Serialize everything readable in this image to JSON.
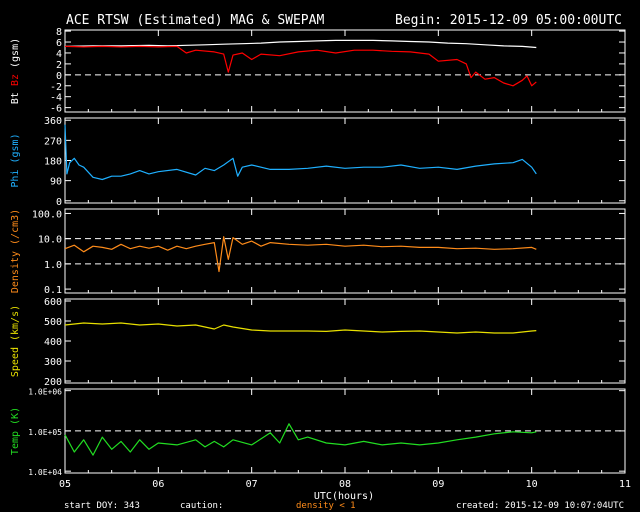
{
  "header": {
    "title": "ACE RTSW (Estimated) MAG & SWEPAM",
    "begin": "Begin: 2015-12-09 05:00:00UTC"
  },
  "footer": {
    "start_doy": "start DOY: 343",
    "caution": "caution:",
    "density_note": "density < 1",
    "created": "created: 2015-12-09 10:07:04UTC"
  },
  "colors": {
    "bt": "#ffffff",
    "bz": "#ff0000",
    "phi": "#1fb0ff",
    "density": "#ff8c1a",
    "speed": "#e8e000",
    "temp": "#22dd22",
    "background": "#000000",
    "axes": "#ffffff"
  },
  "chart_data": [
    {
      "id": "mag",
      "type": "line",
      "ylabel_parts": [
        "Bt",
        "Bz",
        "(gsm)"
      ],
      "xlim": [
        5,
        11
      ],
      "ylim": [
        -6.8,
        8.2
      ],
      "yticks": [
        8,
        6,
        4,
        2,
        0,
        -2,
        -4,
        -6
      ],
      "dashed_refs": [
        0
      ],
      "series": [
        {
          "name": "Bt",
          "color": "#ffffff",
          "x": [
            5.0,
            5.3,
            5.6,
            5.9,
            6.1,
            6.3,
            6.5,
            6.7,
            6.9,
            7.1,
            7.3,
            7.5,
            7.7,
            7.9,
            8.1,
            8.3,
            8.5,
            8.7,
            8.9,
            9.1,
            9.3,
            9.5,
            9.7,
            9.9,
            10.05
          ],
          "y": [
            5.2,
            5.3,
            5.3,
            5.4,
            5.3,
            5.4,
            5.5,
            5.6,
            5.7,
            5.8,
            6.0,
            6.1,
            6.2,
            6.3,
            6.3,
            6.3,
            6.2,
            6.1,
            6.0,
            5.8,
            5.7,
            5.5,
            5.3,
            5.2,
            5.0
          ]
        },
        {
          "name": "Bz",
          "color": "#ff0000",
          "x": [
            5.0,
            5.2,
            5.4,
            5.6,
            5.8,
            6.0,
            6.2,
            6.3,
            6.4,
            6.6,
            6.7,
            6.75,
            6.8,
            6.9,
            7.0,
            7.1,
            7.3,
            7.5,
            7.7,
            7.9,
            8.1,
            8.3,
            8.5,
            8.7,
            8.9,
            9.0,
            9.2,
            9.3,
            9.35,
            9.4,
            9.5,
            9.6,
            9.7,
            9.8,
            9.9,
            9.95,
            10.0,
            10.05
          ],
          "y": [
            5.2,
            5.1,
            5.2,
            5.1,
            5.2,
            5.1,
            5.2,
            4.0,
            4.5,
            4.2,
            3.8,
            0.5,
            3.6,
            4.0,
            2.8,
            3.8,
            3.5,
            4.2,
            4.5,
            4.0,
            4.5,
            4.5,
            4.3,
            4.2,
            3.8,
            2.5,
            2.8,
            2.0,
            -0.5,
            0.5,
            -0.8,
            -0.5,
            -1.5,
            -2.0,
            -1.0,
            -0.2,
            -2.0,
            -1.3
          ]
        }
      ]
    },
    {
      "id": "phi",
      "type": "line",
      "ylabel": "Phi (gsm)",
      "xlim": [
        5,
        11
      ],
      "ylim": [
        -10,
        370
      ],
      "yticks": [
        360,
        270,
        180,
        90,
        0
      ],
      "dashed_refs": [],
      "series": [
        {
          "name": "Phi",
          "color": "#1fb0ff",
          "x": [
            5.0,
            5.02,
            5.05,
            5.1,
            5.15,
            5.2,
            5.3,
            5.4,
            5.5,
            5.6,
            5.7,
            5.8,
            5.9,
            6.0,
            6.2,
            6.4,
            6.5,
            6.6,
            6.7,
            6.8,
            6.85,
            6.9,
            7.0,
            7.2,
            7.4,
            7.6,
            7.8,
            8.0,
            8.2,
            8.4,
            8.6,
            8.8,
            9.0,
            9.2,
            9.4,
            9.6,
            9.8,
            9.9,
            10.0,
            10.05
          ],
          "y": [
            340,
            120,
            170,
            190,
            160,
            150,
            105,
            95,
            110,
            110,
            120,
            135,
            120,
            130,
            140,
            115,
            145,
            135,
            160,
            190,
            110,
            150,
            160,
            140,
            140,
            145,
            155,
            145,
            150,
            150,
            160,
            145,
            150,
            140,
            155,
            165,
            170,
            185,
            150,
            120
          ]
        }
      ]
    },
    {
      "id": "density",
      "type": "line",
      "ylabel": "Density (/cm3)",
      "log": true,
      "xlim": [
        5,
        11
      ],
      "ylim": [
        0.07,
        150
      ],
      "yticks": [
        100.0,
        10.0,
        1.0,
        0.1
      ],
      "ytick_labels": [
        "100.0",
        "10.0",
        "1.0",
        "0.1"
      ],
      "dashed_refs": [
        10.0,
        1.0
      ],
      "series": [
        {
          "name": "Density",
          "color": "#ff8c1a",
          "x": [
            5.0,
            5.1,
            5.2,
            5.3,
            5.4,
            5.5,
            5.6,
            5.7,
            5.8,
            5.9,
            6.0,
            6.1,
            6.2,
            6.3,
            6.4,
            6.5,
            6.6,
            6.65,
            6.7,
            6.75,
            6.8,
            6.9,
            7.0,
            7.1,
            7.2,
            7.4,
            7.6,
            7.8,
            8.0,
            8.2,
            8.4,
            8.6,
            8.8,
            9.0,
            9.2,
            9.4,
            9.6,
            9.8,
            10.0,
            10.05
          ],
          "y": [
            4.0,
            5.5,
            3.0,
            5.0,
            4.5,
            3.8,
            6.0,
            4.0,
            5.0,
            4.2,
            5.0,
            3.5,
            5.0,
            4.0,
            5.0,
            6.0,
            7.0,
            0.5,
            12.0,
            1.5,
            11.0,
            6.0,
            8.0,
            5.0,
            7.0,
            6.0,
            5.5,
            6.0,
            5.0,
            5.5,
            4.8,
            5.0,
            4.5,
            4.5,
            4.0,
            4.2,
            3.8,
            4.0,
            4.5,
            3.8
          ]
        }
      ]
    },
    {
      "id": "speed",
      "type": "line",
      "ylabel": "Speed (km/s)",
      "xlim": [
        5,
        11
      ],
      "ylim": [
        190,
        610
      ],
      "yticks": [
        600,
        500,
        400,
        300,
        200
      ],
      "dashed_refs": [],
      "series": [
        {
          "name": "Speed",
          "color": "#e8e000",
          "x": [
            5.0,
            5.2,
            5.4,
            5.6,
            5.8,
            6.0,
            6.2,
            6.4,
            6.6,
            6.7,
            6.8,
            7.0,
            7.2,
            7.4,
            7.6,
            7.8,
            8.0,
            8.2,
            8.4,
            8.6,
            8.8,
            9.0,
            9.2,
            9.4,
            9.6,
            9.8,
            10.0,
            10.05
          ],
          "y": [
            480,
            490,
            485,
            490,
            480,
            485,
            475,
            480,
            460,
            480,
            470,
            455,
            450,
            450,
            450,
            448,
            455,
            450,
            445,
            448,
            450,
            445,
            440,
            445,
            440,
            440,
            450,
            452
          ]
        }
      ]
    },
    {
      "id": "temp",
      "type": "line",
      "ylabel": "Temp (K)",
      "log": true,
      "xlim": [
        5,
        11
      ],
      "ylim": [
        9000,
        1100000
      ],
      "yticks": [
        1000000,
        100000,
        10000
      ],
      "ytick_labels": [
        "1.0E+06",
        "1.0E+05",
        "1.0E+04"
      ],
      "dashed_refs": [
        100000
      ],
      "series": [
        {
          "name": "Temp",
          "color": "#22dd22",
          "x": [
            5.0,
            5.1,
            5.2,
            5.3,
            5.4,
            5.5,
            5.6,
            5.7,
            5.8,
            5.9,
            6.0,
            6.2,
            6.4,
            6.5,
            6.6,
            6.7,
            6.8,
            7.0,
            7.2,
            7.3,
            7.4,
            7.5,
            7.6,
            7.8,
            8.0,
            8.2,
            8.4,
            8.6,
            8.8,
            9.0,
            9.2,
            9.4,
            9.6,
            9.8,
            10.0,
            10.05
          ],
          "y": [
            80000,
            30000,
            60000,
            25000,
            70000,
            35000,
            55000,
            30000,
            60000,
            35000,
            50000,
            45000,
            60000,
            40000,
            55000,
            40000,
            60000,
            45000,
            90000,
            50000,
            150000,
            60000,
            70000,
            50000,
            45000,
            55000,
            45000,
            50000,
            45000,
            50000,
            60000,
            70000,
            85000,
            95000,
            90000,
            95000
          ]
        }
      ]
    }
  ],
  "x_axis": {
    "ticks": [
      5,
      6,
      7,
      8,
      9,
      10,
      11
    ],
    "tick_labels": [
      "05",
      "06",
      "07",
      "08",
      "09",
      "10",
      "11"
    ],
    "label": "UTC(hours)"
  }
}
